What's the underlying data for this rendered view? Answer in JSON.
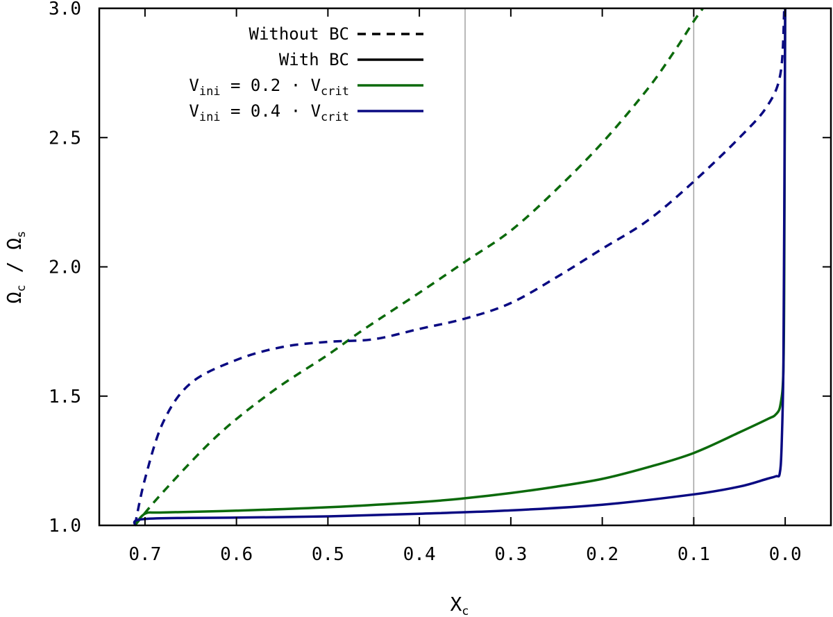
{
  "chart_data": {
    "type": "line",
    "title": "",
    "xlabel": {
      "main": "X",
      "sub": "c"
    },
    "ylabel": {
      "main": "Ω",
      "sub1": "c",
      "sep": " / ",
      "main2": "Ω",
      "sub2": "s"
    },
    "xlim": [
      0.75,
      -0.05
    ],
    "ylim": [
      1.0,
      3.0
    ],
    "xticks": [
      0.7,
      0.6,
      0.5,
      0.4,
      0.3,
      0.2,
      0.1,
      0.0
    ],
    "xtick_labels": [
      "0.7",
      "0.6",
      "0.5",
      "0.4",
      "0.3",
      "0.2",
      "0.1",
      "0.0"
    ],
    "yticks": [
      1.0,
      1.5,
      2.0,
      2.5,
      3.0
    ],
    "ytick_labels": [
      "1.0",
      "1.5",
      "2.0",
      "2.5",
      "3.0"
    ],
    "vlines": [
      0.35,
      0.1
    ],
    "legend": {
      "position": "top-center",
      "entries": [
        {
          "name": "without-bc",
          "parts": [
            {
              "t": "Without BC"
            }
          ],
          "color": "#000000",
          "dashed": true
        },
        {
          "name": "with-bc",
          "parts": [
            {
              "t": "With BC"
            }
          ],
          "color": "#000000",
          "dashed": false
        },
        {
          "name": "vini-02",
          "parts": [
            {
              "t": "V"
            },
            {
              "t": "ini",
              "sub": true
            },
            {
              "t": " = 0.2  · V"
            },
            {
              "t": "crit",
              "sub": true
            }
          ],
          "color": "#0c6a0c",
          "dashed": false
        },
        {
          "name": "vini-04",
          "parts": [
            {
              "t": "V"
            },
            {
              "t": "ini",
              "sub": true
            },
            {
              "t": " = 0.4  · V"
            },
            {
              "t": "crit",
              "sub": true
            }
          ],
          "color": "#0a0a82",
          "dashed": false
        }
      ]
    },
    "series": [
      {
        "name": "green-without-bc",
        "color": "#0c6a0c",
        "dashed": true,
        "points": [
          [
            0.711,
            1.0
          ],
          [
            0.68,
            1.13
          ],
          [
            0.62,
            1.35
          ],
          [
            0.56,
            1.52
          ],
          [
            0.5,
            1.66
          ],
          [
            0.46,
            1.76
          ],
          [
            0.4,
            1.9
          ],
          [
            0.35,
            2.02
          ],
          [
            0.3,
            2.14
          ],
          [
            0.25,
            2.3
          ],
          [
            0.2,
            2.48
          ],
          [
            0.15,
            2.69
          ],
          [
            0.12,
            2.84
          ],
          [
            0.1,
            2.95
          ],
          [
            0.09,
            3.0
          ]
        ]
      },
      {
        "name": "blue-without-bc",
        "color": "#0a0a82",
        "dashed": true,
        "points": [
          [
            0.711,
            1.0
          ],
          [
            0.7,
            1.18
          ],
          [
            0.68,
            1.4
          ],
          [
            0.65,
            1.55
          ],
          [
            0.6,
            1.64
          ],
          [
            0.55,
            1.69
          ],
          [
            0.5,
            1.71
          ],
          [
            0.45,
            1.72
          ],
          [
            0.4,
            1.76
          ],
          [
            0.35,
            1.8
          ],
          [
            0.3,
            1.86
          ],
          [
            0.25,
            1.96
          ],
          [
            0.2,
            2.07
          ],
          [
            0.15,
            2.18
          ],
          [
            0.1,
            2.33
          ],
          [
            0.05,
            2.5
          ],
          [
            0.02,
            2.62
          ],
          [
            0.005,
            2.75
          ],
          [
            0.001,
            3.0
          ]
        ]
      },
      {
        "name": "green-with-bc",
        "color": "#0c6a0c",
        "dashed": false,
        "points": [
          [
            0.711,
            1.0
          ],
          [
            0.7,
            1.045
          ],
          [
            0.68,
            1.05
          ],
          [
            0.6,
            1.057
          ],
          [
            0.5,
            1.07
          ],
          [
            0.4,
            1.09
          ],
          [
            0.35,
            1.105
          ],
          [
            0.3,
            1.125
          ],
          [
            0.25,
            1.15
          ],
          [
            0.2,
            1.18
          ],
          [
            0.15,
            1.225
          ],
          [
            0.1,
            1.28
          ],
          [
            0.05,
            1.36
          ],
          [
            0.02,
            1.41
          ],
          [
            0.01,
            1.43
          ],
          [
            0.005,
            1.47
          ],
          [
            0.002,
            1.6
          ],
          [
            0.001,
            2.0
          ],
          [
            0.0,
            3.0
          ]
        ]
      },
      {
        "name": "blue-with-bc",
        "color": "#0a0a82",
        "dashed": false,
        "points": [
          [
            0.711,
            1.0
          ],
          [
            0.7,
            1.025
          ],
          [
            0.6,
            1.03
          ],
          [
            0.5,
            1.035
          ],
          [
            0.4,
            1.045
          ],
          [
            0.3,
            1.058
          ],
          [
            0.2,
            1.08
          ],
          [
            0.1,
            1.12
          ],
          [
            0.05,
            1.15
          ],
          [
            0.02,
            1.18
          ],
          [
            0.01,
            1.19
          ],
          [
            0.006,
            1.2
          ],
          [
            0.004,
            1.3
          ],
          [
            0.002,
            1.6
          ],
          [
            0.001,
            2.2
          ],
          [
            0.0,
            3.0
          ]
        ]
      }
    ]
  }
}
